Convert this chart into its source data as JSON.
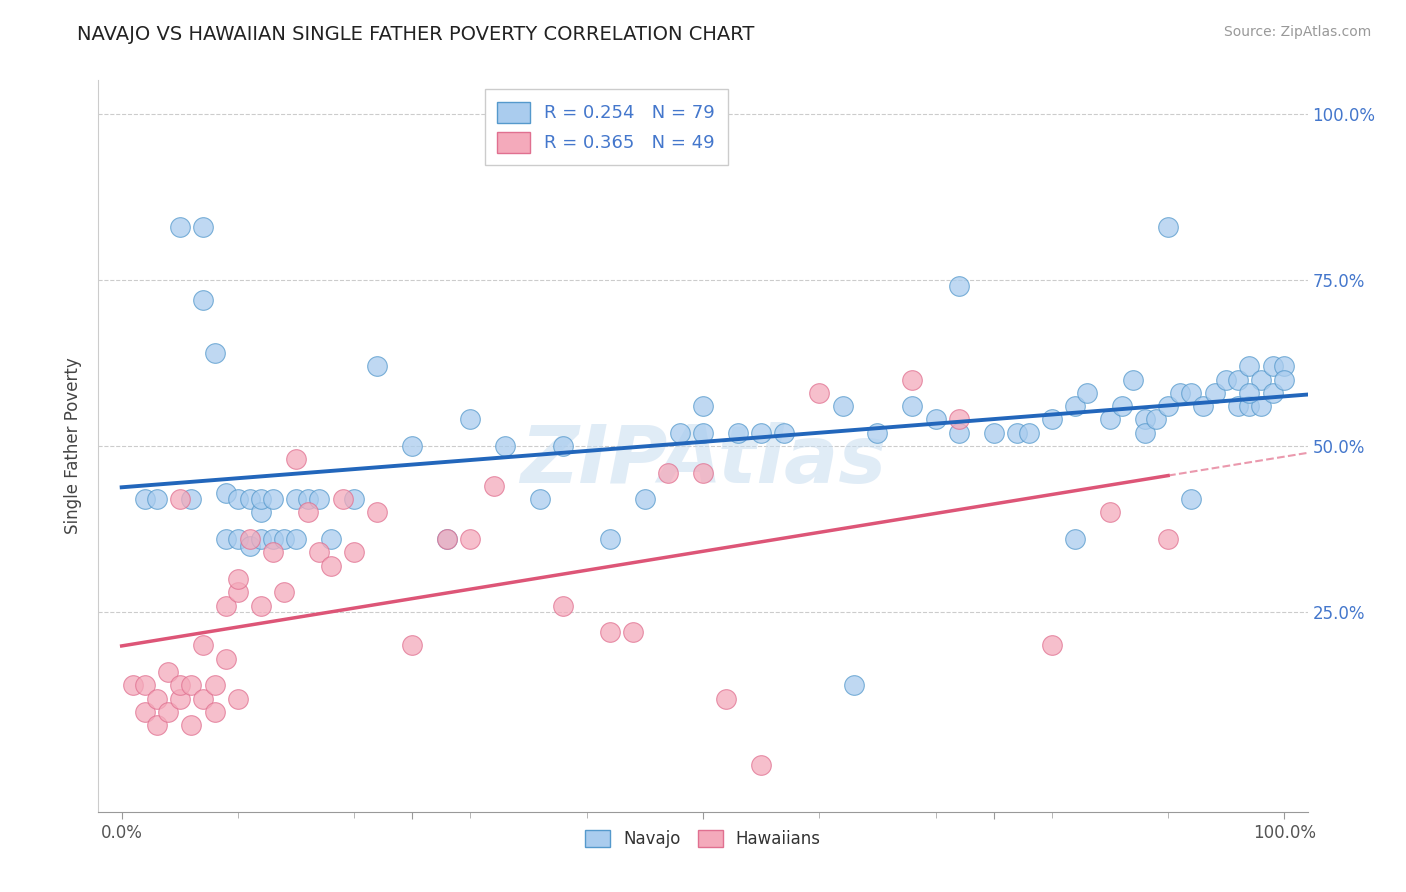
{
  "title": "NAVAJO VS HAWAIIAN SINGLE FATHER POVERTY CORRELATION CHART",
  "source": "Source: ZipAtlas.com",
  "ylabel": "Single Father Poverty",
  "xlim": [
    -0.02,
    1.02
  ],
  "ylim": [
    -0.05,
    1.05
  ],
  "navajo_R": 0.254,
  "navajo_N": 79,
  "hawaiian_R": 0.365,
  "hawaiian_N": 49,
  "navajo_color": "#aaccee",
  "hawaiian_color": "#f4aabb",
  "navajo_edge_color": "#5599cc",
  "hawaiian_edge_color": "#e07090",
  "navajo_trend_color": "#2266bb",
  "hawaiian_trend_color": "#dd5577",
  "watermark": "ZIPAtlas",
  "background_color": "#ffffff",
  "navajo_x": [
    0.02,
    0.05,
    0.07,
    0.08,
    0.09,
    0.09,
    0.1,
    0.1,
    0.11,
    0.11,
    0.12,
    0.12,
    0.12,
    0.13,
    0.13,
    0.14,
    0.15,
    0.15,
    0.16,
    0.17,
    0.18,
    0.2,
    0.22,
    0.25,
    0.28,
    0.3,
    0.33,
    0.38,
    0.42,
    0.45,
    0.48,
    0.5,
    0.53,
    0.57,
    0.62,
    0.65,
    0.68,
    0.7,
    0.72,
    0.75,
    0.77,
    0.78,
    0.8,
    0.82,
    0.83,
    0.85,
    0.86,
    0.87,
    0.88,
    0.88,
    0.89,
    0.9,
    0.91,
    0.92,
    0.93,
    0.94,
    0.95,
    0.96,
    0.96,
    0.97,
    0.97,
    0.98,
    0.98,
    0.99,
    0.99,
    1.0,
    1.0,
    0.03,
    0.06,
    0.07,
    0.36,
    0.5,
    0.55,
    0.63,
    0.72,
    0.82,
    0.9,
    0.92,
    0.97
  ],
  "navajo_y": [
    0.42,
    0.83,
    0.72,
    0.64,
    0.43,
    0.36,
    0.42,
    0.36,
    0.35,
    0.42,
    0.4,
    0.36,
    0.42,
    0.36,
    0.42,
    0.36,
    0.36,
    0.42,
    0.42,
    0.42,
    0.36,
    0.42,
    0.62,
    0.5,
    0.36,
    0.54,
    0.5,
    0.5,
    0.36,
    0.42,
    0.52,
    0.52,
    0.52,
    0.52,
    0.56,
    0.52,
    0.56,
    0.54,
    0.52,
    0.52,
    0.52,
    0.52,
    0.54,
    0.56,
    0.58,
    0.54,
    0.56,
    0.6,
    0.54,
    0.52,
    0.54,
    0.56,
    0.58,
    0.58,
    0.56,
    0.58,
    0.6,
    0.56,
    0.6,
    0.62,
    0.56,
    0.6,
    0.56,
    0.58,
    0.62,
    0.62,
    0.6,
    0.42,
    0.42,
    0.83,
    0.42,
    0.56,
    0.52,
    0.14,
    0.74,
    0.36,
    0.83,
    0.42,
    0.58
  ],
  "hawaiian_x": [
    0.01,
    0.02,
    0.02,
    0.03,
    0.03,
    0.04,
    0.04,
    0.05,
    0.05,
    0.05,
    0.06,
    0.06,
    0.07,
    0.07,
    0.08,
    0.08,
    0.09,
    0.09,
    0.1,
    0.1,
    0.11,
    0.12,
    0.13,
    0.14,
    0.15,
    0.16,
    0.17,
    0.18,
    0.19,
    0.2,
    0.22,
    0.25,
    0.28,
    0.3,
    0.32,
    0.38,
    0.42,
    0.44,
    0.47,
    0.5,
    0.52,
    0.55,
    0.6,
    0.68,
    0.72,
    0.8,
    0.85,
    0.9,
    0.1
  ],
  "hawaiian_y": [
    0.14,
    0.14,
    0.1,
    0.08,
    0.12,
    0.1,
    0.16,
    0.12,
    0.14,
    0.42,
    0.08,
    0.14,
    0.12,
    0.2,
    0.1,
    0.14,
    0.18,
    0.26,
    0.12,
    0.28,
    0.36,
    0.26,
    0.34,
    0.28,
    0.48,
    0.4,
    0.34,
    0.32,
    0.42,
    0.34,
    0.4,
    0.2,
    0.36,
    0.36,
    0.44,
    0.26,
    0.22,
    0.22,
    0.46,
    0.46,
    0.12,
    0.02,
    0.58,
    0.6,
    0.54,
    0.2,
    0.4,
    0.36,
    0.3
  ]
}
